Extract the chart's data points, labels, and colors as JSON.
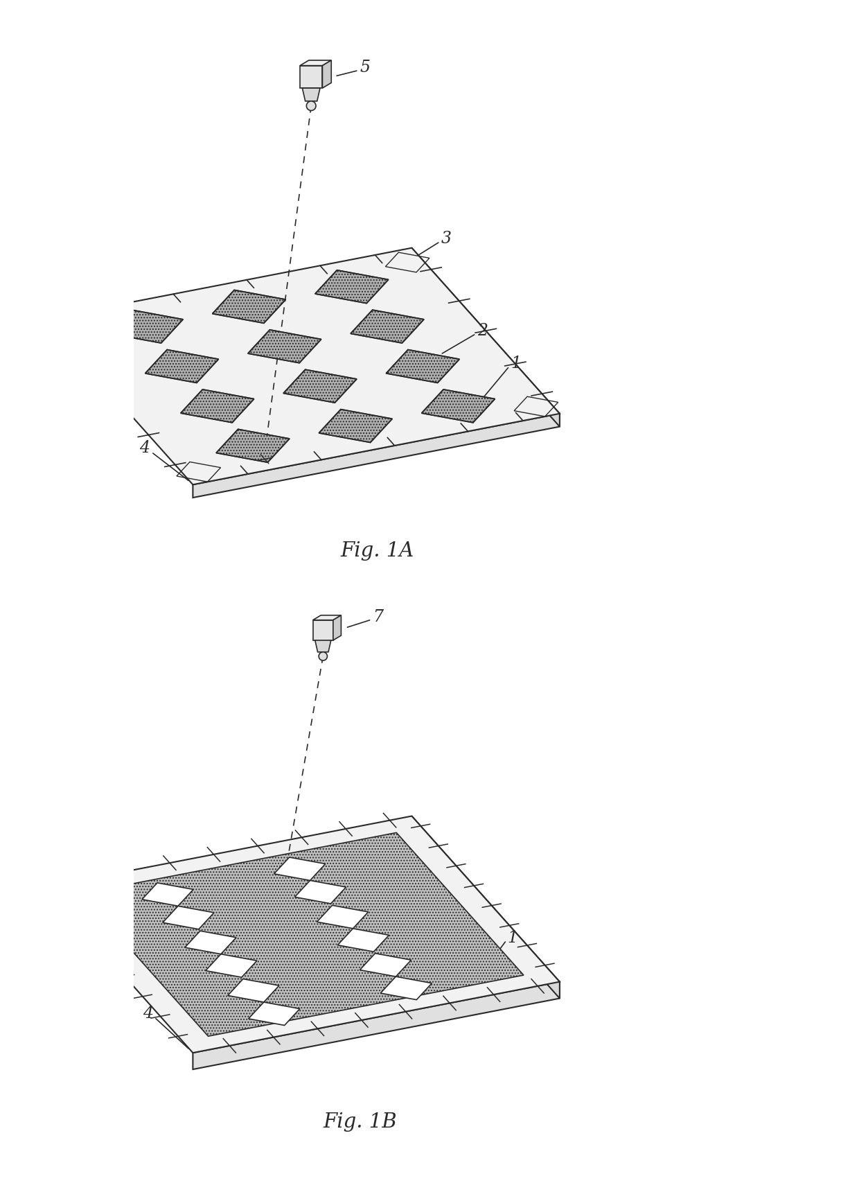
{
  "background_color": "#ffffff",
  "fig_width": 12.4,
  "fig_height": 17.08,
  "fig1a_label": "Fig. 1A",
  "fig1b_label": "Fig. 1B",
  "label_fontsize": 21,
  "annotation_fontsize": 17,
  "line_color": "#2a2a2a",
  "board_top_color": "#f2f2f2",
  "board_front_color": "#e0e0e0",
  "board_right_color": "#d8d8d8",
  "pad_fill_color": "#b0b0b0",
  "mold_fill_color": "#c0c0c0",
  "camera_body_color": "#e5e5e5",
  "camera_side_color": "#cccccc",
  "camera_top_color": "#f0f0f0"
}
